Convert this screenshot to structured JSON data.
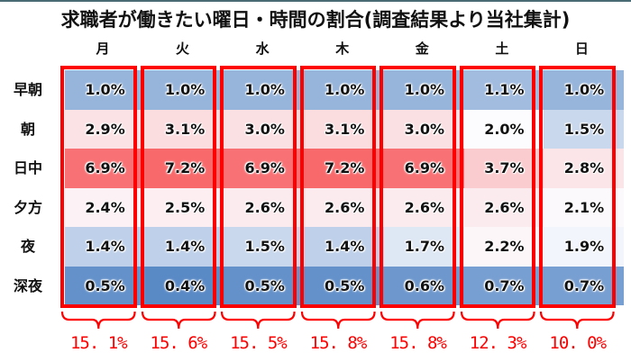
{
  "title": "求職者が働きたい曜日・時間の割合(調査結果より当社集計)",
  "days": [
    "月",
    "火",
    "水",
    "木",
    "金",
    "土",
    "日"
  ],
  "time_slots": [
    "早朝",
    "朝",
    "日中",
    "夕方",
    "夜",
    "深夜"
  ],
  "totals": [
    "15.1%",
    "15.6%",
    "15.5%",
    "15.8%",
    "15.8%",
    "12.3%",
    "10.0%"
  ],
  "colors": {
    "low": "#5a8ac6",
    "mid": "#fcfcff",
    "high": "#f8696b",
    "highlight_box": "#ff0000",
    "top_rule": "#4a6b73"
  },
  "chart_data": {
    "type": "heatmap",
    "title": "求職者が働きたい曜日・時間の割合(調査結果より当社集計)",
    "x_categories": [
      "月",
      "火",
      "水",
      "木",
      "金",
      "土",
      "日"
    ],
    "y_categories": [
      "早朝",
      "朝",
      "日中",
      "夕方",
      "夜",
      "深夜"
    ],
    "unit": "%",
    "values": [
      [
        1.0,
        1.0,
        1.0,
        1.0,
        1.0,
        1.1,
        1.0
      ],
      [
        2.9,
        3.1,
        3.0,
        3.1,
        3.0,
        2.0,
        1.5
      ],
      [
        6.9,
        7.2,
        6.9,
        7.2,
        6.9,
        3.7,
        2.8
      ],
      [
        2.4,
        2.5,
        2.6,
        2.6,
        2.6,
        2.6,
        2.1
      ],
      [
        1.4,
        1.4,
        1.5,
        1.4,
        1.7,
        2.2,
        1.9
      ],
      [
        0.5,
        0.4,
        0.5,
        0.5,
        0.6,
        0.7,
        0.7
      ]
    ],
    "labels": [
      [
        "1.0%",
        "1.0%",
        "1.0%",
        "1.0%",
        "1.0%",
        "1.1%",
        "1.0%"
      ],
      [
        "2.9%",
        "3.1%",
        "3.0%",
        "3.1%",
        "3.0%",
        "2.0%",
        "1.5%"
      ],
      [
        "6.9%",
        "7.2%",
        "6.9%",
        "7.2%",
        "6.9%",
        "3.7%",
        "2.8%"
      ],
      [
        "2.4%",
        "2.5%",
        "2.6%",
        "2.6%",
        "2.6%",
        "2.6%",
        "2.1%"
      ],
      [
        "1.4%",
        "1.4%",
        "1.5%",
        "1.4%",
        "1.7%",
        "2.2%",
        "1.9%"
      ],
      [
        "0.5%",
        "0.4%",
        "0.5%",
        "0.5%",
        "0.6%",
        "0.7%",
        "0.7%"
      ]
    ],
    "column_totals": {
      "categories": [
        "月",
        "火",
        "水",
        "木",
        "金",
        "土",
        "日"
      ],
      "values": [
        15.1,
        15.6,
        15.5,
        15.8,
        15.8,
        12.3,
        10.0
      ],
      "labels": [
        "15.1%",
        "15.6%",
        "15.5%",
        "15.8%",
        "15.8%",
        "12.3%",
        "10.0%"
      ]
    },
    "color_scale": {
      "min_color": "#5a8ac6",
      "mid_color": "#fcfcff",
      "max_color": "#f8696b",
      "mid_value": 2.0
    },
    "annotations": "Each weekday column outlined by a red box with a curly brace below showing the column total",
    "grid": false,
    "legend": "none"
  }
}
